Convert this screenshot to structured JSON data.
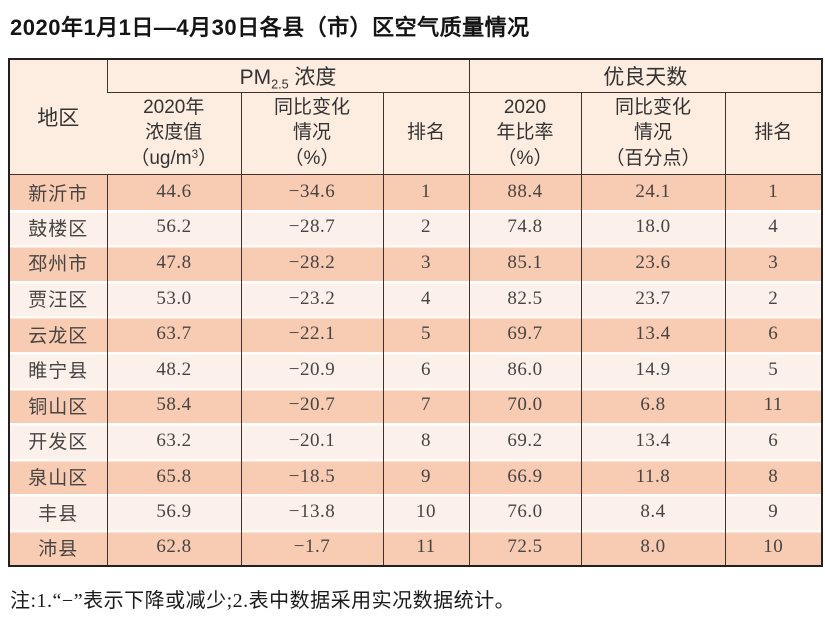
{
  "title": "2020年1月1日—4月30日各县（市）区空气质量情况",
  "table": {
    "region_header": "地区",
    "group_pm25": {
      "pm": "PM",
      "sub": "2.5",
      "rest": " 浓度"
    },
    "group_good": "优良天数",
    "columns": {
      "conc": {
        "line1": "2020年",
        "line2": "浓度值",
        "unit_open": "（ug/m",
        "unit_sup": "3",
        "unit_close": "）"
      },
      "pm_change": "同比变化\n情况\n（%）",
      "pm_rank": "排名",
      "ratio": "2020\n年比率\n（%）",
      "good_change": "同比变化\n情况\n（百分点）",
      "good_rank": "排名"
    },
    "rows": [
      {
        "region": "新沂市",
        "pm_value": "44.6",
        "pm_change": "−34.6",
        "pm_rank": "1",
        "ratio": "88.4",
        "ratio_change": "24.1",
        "good_rank": "1"
      },
      {
        "region": "鼓楼区",
        "pm_value": "56.2",
        "pm_change": "−28.7",
        "pm_rank": "2",
        "ratio": "74.8",
        "ratio_change": "18.0",
        "good_rank": "4"
      },
      {
        "region": "邳州市",
        "pm_value": "47.8",
        "pm_change": "−28.2",
        "pm_rank": "3",
        "ratio": "85.1",
        "ratio_change": "23.6",
        "good_rank": "3"
      },
      {
        "region": "贾汪区",
        "pm_value": "53.0",
        "pm_change": "−23.2",
        "pm_rank": "4",
        "ratio": "82.5",
        "ratio_change": "23.7",
        "good_rank": "2"
      },
      {
        "region": "云龙区",
        "pm_value": "63.7",
        "pm_change": "−22.1",
        "pm_rank": "5",
        "ratio": "69.7",
        "ratio_change": "13.4",
        "good_rank": "6"
      },
      {
        "region": "睢宁县",
        "pm_value": "48.2",
        "pm_change": "−20.9",
        "pm_rank": "6",
        "ratio": "86.0",
        "ratio_change": "14.9",
        "good_rank": "5"
      },
      {
        "region": "铜山区",
        "pm_value": "58.4",
        "pm_change": "−20.7",
        "pm_rank": "7",
        "ratio": "70.0",
        "ratio_change": "6.8",
        "good_rank": "11"
      },
      {
        "region": "开发区",
        "pm_value": "63.2",
        "pm_change": "−20.1",
        "pm_rank": "8",
        "ratio": "69.2",
        "ratio_change": "13.4",
        "good_rank": "6"
      },
      {
        "region": "泉山区",
        "pm_value": "65.8",
        "pm_change": "−18.5",
        "pm_rank": "9",
        "ratio": "66.9",
        "ratio_change": "11.8",
        "good_rank": "8"
      },
      {
        "region": "丰县",
        "pm_value": "56.9",
        "pm_change": "−13.8",
        "pm_rank": "10",
        "ratio": "76.0",
        "ratio_change": "8.4",
        "good_rank": "9"
      },
      {
        "region": "沛县",
        "pm_value": "62.8",
        "pm_change": "−1.7",
        "pm_rank": "11",
        "ratio": "72.5",
        "ratio_change": "8.0",
        "good_rank": "10"
      }
    ]
  },
  "footnote": "注:1.“−”表示下降或减少;2.表中数据采用实况数据统计。",
  "colors": {
    "row_odd": "#f8cbb3",
    "row_even": "#fcf1ea",
    "header_bg": "#fdede0",
    "border_dark": "#42302a",
    "border_outer": "#241f20"
  }
}
